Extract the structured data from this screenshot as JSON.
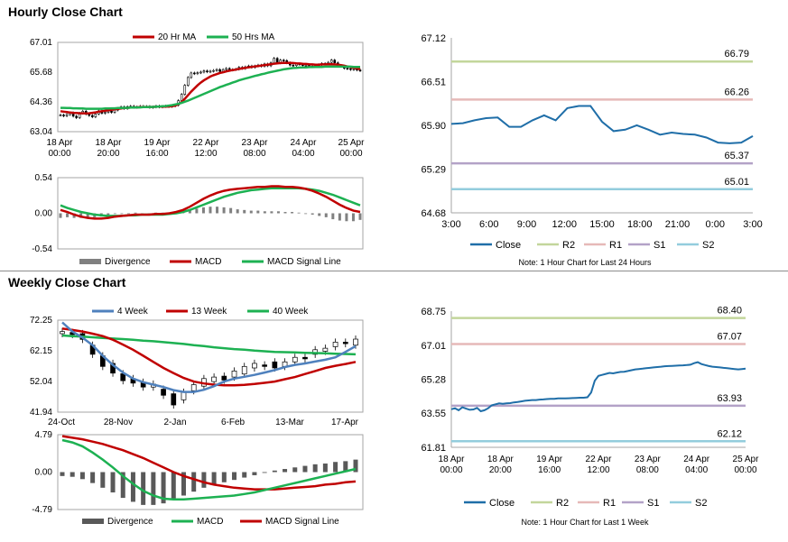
{
  "hourly": {
    "title": "Hourly Close Chart",
    "price_chart": {
      "type": "candlestick",
      "legend": [
        "20 Hr MA",
        "50 Hrs MA"
      ],
      "colors": {
        "ma20": "#c00000",
        "ma50": "#1db152",
        "candle": "#000000"
      },
      "ylim": [
        63.04,
        67.01
      ],
      "yticks": [
        "67.01",
        "65.68",
        "64.36",
        "63.04"
      ],
      "xticks": [
        "18 Apr 00:00",
        "18 Apr 20:00",
        "19 Apr 16:00",
        "22 Apr 12:00",
        "23 Apr 08:00",
        "24 Apr 04:00",
        "25 Apr 00:00"
      ],
      "candles": [
        63.78,
        63.74,
        63.8,
        63.88,
        63.73,
        63.66,
        63.86,
        63.95,
        63.82,
        63.76,
        63.7,
        63.83,
        63.97,
        63.86,
        63.9,
        63.95,
        63.9,
        64.0,
        64.08,
        64.14,
        64.07,
        64.15,
        64.17,
        64.12,
        64.14,
        64.17,
        64.15,
        64.16,
        64.12,
        64.14,
        64.18,
        64.14,
        64.16,
        64.18,
        64.16,
        64.18,
        64.22,
        64.42,
        64.7,
        65.1,
        65.45,
        65.65,
        65.62,
        65.66,
        65.69,
        65.74,
        65.7,
        65.73,
        65.76,
        65.8,
        65.72,
        65.8,
        65.85,
        65.78,
        65.8,
        65.82,
        65.9,
        65.85,
        65.92,
        65.96,
        65.9,
        65.96,
        66.0,
        65.95,
        66.05,
        65.97,
        66.1,
        66.3,
        66.1,
        66.22,
        66.2,
        66.1,
        66.0,
        65.98,
        66.05,
        66.04,
        65.98,
        66.0,
        65.96,
        65.93,
        65.98,
        66.02,
        66.07,
        66.05,
        66.12,
        66.22,
        66.1,
        65.98,
        65.95,
        65.86,
        65.84,
        65.8,
        65.83,
        65.78,
        65.75
      ],
      "ma20": [
        63.95,
        63.93,
        63.91,
        63.89,
        63.88,
        63.87,
        63.86,
        63.86,
        63.85,
        63.86,
        63.88,
        63.9,
        63.93,
        63.95,
        63.97,
        63.99,
        64.01,
        64.03,
        64.05,
        64.07,
        64.09,
        64.1,
        64.11,
        64.12,
        64.12,
        64.13,
        64.14,
        64.14,
        64.14,
        64.14,
        64.15,
        64.15,
        64.15,
        64.15,
        64.16,
        64.17,
        64.2,
        64.26,
        64.36,
        64.5,
        64.66,
        64.82,
        64.96,
        65.1,
        65.22,
        65.32,
        65.41,
        65.49,
        65.55,
        65.6,
        65.65,
        65.68,
        65.72,
        65.75,
        65.78,
        65.8,
        65.83,
        65.85,
        65.88,
        65.9,
        65.92,
        65.94,
        65.96,
        65.98,
        66.0,
        66.02,
        66.04,
        66.06,
        66.08,
        66.09,
        66.1,
        66.1,
        66.1,
        66.09,
        66.08,
        66.07,
        66.06,
        66.05,
        66.04,
        66.03,
        66.02,
        66.02,
        66.03,
        66.03,
        66.04,
        66.04,
        66.03,
        66.02,
        66.0,
        65.97,
        65.94,
        65.91,
        65.88,
        65.85,
        65.82
      ],
      "ma50": [
        64.1,
        64.1,
        64.09,
        64.09,
        64.08,
        64.08,
        64.07,
        64.07,
        64.06,
        64.06,
        64.06,
        64.06,
        64.06,
        64.06,
        64.07,
        64.07,
        64.08,
        64.08,
        64.09,
        64.09,
        64.1,
        64.1,
        64.11,
        64.11,
        64.12,
        64.12,
        64.13,
        64.13,
        64.14,
        64.14,
        64.15,
        64.16,
        64.17,
        64.18,
        64.2,
        64.22,
        64.25,
        64.28,
        64.32,
        64.37,
        64.42,
        64.48,
        64.54,
        64.6,
        64.66,
        64.72,
        64.78,
        64.84,
        64.9,
        64.96,
        65.02,
        65.07,
        65.12,
        65.17,
        65.22,
        65.27,
        65.32,
        65.36,
        65.4,
        65.44,
        65.48,
        65.52,
        65.55,
        65.59,
        65.62,
        65.66,
        65.69,
        65.72,
        65.75,
        65.78,
        65.81,
        65.83,
        65.85,
        65.87,
        65.88,
        65.89,
        65.9,
        65.9,
        65.91,
        65.91,
        65.92,
        65.92,
        65.92,
        65.93,
        65.93,
        65.93,
        65.93,
        65.93,
        65.93,
        65.93,
        65.93,
        65.93,
        65.92,
        65.92,
        65.92
      ]
    },
    "macd_chart": {
      "type": "bar+line",
      "legend": [
        "Divergence",
        "MACD",
        "MACD Signal Line"
      ],
      "colors": {
        "divergence": "#808080",
        "macd": "#c00000",
        "signal": "#1db152"
      },
      "ylim": [
        -0.54,
        0.54
      ],
      "yticks": [
        "0.54",
        "0.00",
        "-0.54"
      ],
      "macd": [
        0.05,
        0.02,
        -0.02,
        -0.05,
        -0.07,
        -0.08,
        -0.08,
        -0.07,
        -0.05,
        -0.04,
        -0.03,
        -0.02,
        -0.02,
        -0.02,
        -0.01,
        -0.01,
        0.0,
        0.02,
        0.05,
        0.1,
        0.16,
        0.22,
        0.27,
        0.31,
        0.34,
        0.36,
        0.37,
        0.38,
        0.39,
        0.4,
        0.4,
        0.41,
        0.41,
        0.4,
        0.4,
        0.39,
        0.37,
        0.34,
        0.3,
        0.25,
        0.19,
        0.13,
        0.08,
        0.04,
        0.02
      ],
      "signal": [
        0.12,
        0.08,
        0.05,
        0.02,
        0.0,
        -0.02,
        -0.03,
        -0.04,
        -0.04,
        -0.04,
        -0.03,
        -0.03,
        -0.02,
        -0.02,
        -0.02,
        -0.02,
        -0.01,
        0.0,
        0.02,
        0.05,
        0.09,
        0.13,
        0.17,
        0.21,
        0.25,
        0.28,
        0.31,
        0.33,
        0.35,
        0.36,
        0.37,
        0.38,
        0.38,
        0.38,
        0.38,
        0.38,
        0.37,
        0.36,
        0.34,
        0.31,
        0.28,
        0.24,
        0.2,
        0.16,
        0.12
      ]
    },
    "levels_chart": {
      "type": "line",
      "legend": [
        "Close",
        "R2",
        "R1",
        "S1",
        "S2"
      ],
      "colors": {
        "close": "#1f6ea8",
        "r2": "#c3d69b",
        "r1": "#e6b9b8",
        "s1": "#b3a2c7",
        "s2": "#93cddd"
      },
      "ylim": [
        64.68,
        67.12
      ],
      "yticks": [
        "67.12",
        "66.51",
        "65.90",
        "65.29",
        "64.68"
      ],
      "xticks": [
        "3:00",
        "6:00",
        "9:00",
        "12:00",
        "15:00",
        "18:00",
        "21:00",
        "0:00",
        "3:00"
      ],
      "levels": {
        "R2": "66.79",
        "R1": "66.26",
        "S1": "65.37",
        "S2": "65.01"
      },
      "close": [
        65.92,
        65.93,
        65.97,
        66.0,
        66.01,
        65.88,
        65.88,
        65.97,
        66.04,
        65.97,
        66.14,
        66.17,
        66.17,
        65.95,
        65.82,
        65.84,
        65.9,
        65.84,
        65.77,
        65.8,
        65.78,
        65.77,
        65.73,
        65.66,
        65.65,
        65.66,
        65.75
      ],
      "note": "Note: 1 Hour Chart for Last 24 Hours"
    }
  },
  "weekly": {
    "title": "Weekly Close Chart",
    "price_chart": {
      "type": "candlestick",
      "legend": [
        "4 Week",
        "13 Week",
        "40 Week"
      ],
      "colors": {
        "w4": "#4f81bd",
        "w13": "#c00000",
        "w40": "#1db152",
        "candle": "#000000"
      },
      "ylim": [
        41.94,
        72.25
      ],
      "yticks": [
        "72.25",
        "62.15",
        "52.04",
        "41.94"
      ],
      "xticks": [
        "24-Oct",
        "28-Nov",
        "2-Jan",
        "6-Feb",
        "13-Mar",
        "17-Apr"
      ],
      "candles": [
        [
          67.8,
          68.5
        ],
        [
          68.2,
          67.5
        ],
        [
          67.8,
          65.9
        ],
        [
          64.0,
          61.0
        ],
        [
          60.5,
          57.0
        ],
        [
          58.0,
          54.8
        ],
        [
          54.6,
          52.3
        ],
        [
          53.0,
          51.5
        ],
        [
          51.8,
          50.2
        ],
        [
          50.2,
          51.2
        ],
        [
          49.5,
          47.5
        ],
        [
          48.0,
          44.3
        ],
        [
          46.0,
          48.5
        ],
        [
          49.0,
          51.0
        ],
        [
          50.5,
          53.0
        ],
        [
          52.0,
          53.5
        ],
        [
          53.8,
          52.5
        ],
        [
          53.5,
          55.5
        ],
        [
          54.5,
          57.0
        ],
        [
          56.5,
          58.0
        ],
        [
          57.5,
          57.0
        ],
        [
          58.5,
          56.5
        ],
        [
          57.0,
          58.5
        ],
        [
          58.5,
          60.0
        ],
        [
          60.0,
          59.5
        ],
        [
          61.0,
          62.5
        ],
        [
          62.0,
          63.0
        ],
        [
          63.5,
          65.0
        ],
        [
          65.0,
          64.5
        ],
        [
          64.0,
          66.0
        ]
      ],
      "w4": [
        71.5,
        68.5,
        66.5,
        64.0,
        60.5,
        57.5,
        55.0,
        53.0,
        51.8,
        51.0,
        50.2,
        49.2,
        48.6,
        48.6,
        49.3,
        50.5,
        52.0,
        53.0,
        53.6,
        54.2,
        55.0,
        55.8,
        56.8,
        57.5,
        58.0,
        58.6,
        59.2,
        60.0,
        61.8,
        63.7
      ],
      "w13": [
        69.5,
        69.0,
        68.5,
        67.8,
        67.0,
        65.8,
        64.2,
        62.5,
        60.5,
        58.5,
        56.5,
        54.8,
        53.2,
        52.0,
        51.4,
        51.0,
        50.8,
        50.8,
        50.9,
        51.2,
        51.6,
        52.0,
        52.8,
        53.5,
        54.5,
        55.5,
        56.5,
        57.2,
        57.8,
        58.5
      ],
      "w40": [
        67.2,
        67.0,
        66.8,
        66.6,
        66.4,
        66.2,
        66.0,
        65.8,
        65.5,
        65.3,
        65.0,
        64.7,
        64.4,
        64.0,
        63.7,
        63.3,
        63.0,
        62.7,
        62.5,
        62.2,
        62.0,
        61.8,
        61.7,
        61.6,
        61.5,
        61.4,
        61.3,
        61.2,
        61.1,
        61.0
      ]
    },
    "macd_chart": {
      "type": "bar+line",
      "legend": [
        "Divergence",
        "MACD",
        "MACD Signal Line"
      ],
      "colors": {
        "divergence": "#595959",
        "macd": "#1db152",
        "signal": "#c00000"
      },
      "ylim": [
        -4.79,
        4.79
      ],
      "yticks": [
        "4.79",
        "0.00",
        "-4.79"
      ],
      "macd": [
        4.1,
        3.8,
        3.3,
        2.5,
        1.6,
        0.6,
        -0.5,
        -1.5,
        -2.4,
        -3.0,
        -3.4,
        -3.5,
        -3.5,
        -3.4,
        -3.3,
        -3.2,
        -3.1,
        -3.0,
        -2.8,
        -2.6,
        -2.3,
        -2.0,
        -1.7,
        -1.4,
        -1.1,
        -0.8,
        -0.5,
        -0.2,
        0.1,
        0.4
      ],
      "signal": [
        4.6,
        4.4,
        4.2,
        3.9,
        3.6,
        3.2,
        2.8,
        2.3,
        1.8,
        1.2,
        0.6,
        0.0,
        -0.5,
        -0.9,
        -1.3,
        -1.6,
        -1.8,
        -2.0,
        -2.1,
        -2.2,
        -2.2,
        -2.2,
        -2.1,
        -2.0,
        -1.9,
        -1.8,
        -1.6,
        -1.5,
        -1.3,
        -1.2
      ]
    },
    "levels_chart": {
      "type": "line",
      "legend": [
        "Close",
        "R2",
        "R1",
        "S1",
        "S2"
      ],
      "colors": {
        "close": "#1f6ea8",
        "r2": "#c3d69b",
        "r1": "#e6b9b8",
        "s1": "#b3a2c7",
        "s2": "#93cddd"
      },
      "ylim": [
        61.81,
        68.75
      ],
      "yticks": [
        "68.75",
        "67.01",
        "65.28",
        "63.55",
        "61.81"
      ],
      "xticks": [
        "18 Apr 00:00",
        "18 Apr 20:00",
        "19 Apr 16:00",
        "22 Apr 12:00",
        "23 Apr 08:00",
        "24 Apr 04:00",
        "25 Apr 00:00"
      ],
      "levels": {
        "R2": "68.40",
        "R1": "67.07",
        "S1": "63.93",
        "S2": "62.12"
      },
      "close": [
        63.75,
        63.8,
        63.7,
        63.85,
        63.78,
        63.72,
        63.74,
        63.82,
        63.65,
        63.7,
        63.8,
        63.95,
        64.0,
        64.05,
        64.03,
        64.05,
        64.06,
        64.1,
        64.12,
        64.15,
        64.18,
        64.2,
        64.22,
        64.22,
        64.24,
        64.25,
        64.27,
        64.28,
        64.28,
        64.3,
        64.3,
        64.3,
        64.31,
        64.32,
        64.33,
        64.34,
        64.34,
        64.36,
        64.6,
        65.2,
        65.45,
        65.5,
        65.55,
        65.6,
        65.58,
        65.62,
        65.65,
        65.66,
        65.7,
        65.74,
        65.78,
        65.8,
        65.82,
        65.84,
        65.86,
        65.88,
        65.9,
        65.92,
        65.94,
        65.95,
        65.96,
        65.97,
        65.98,
        65.99,
        66.0,
        66.02,
        66.1,
        66.15,
        66.05,
        66.0,
        65.95,
        65.92,
        65.9,
        65.88,
        65.86,
        65.84,
        65.82,
        65.8,
        65.78,
        65.8,
        65.82
      ],
      "note": "Note: 1 Hour Chart for Last 1 Week"
    }
  }
}
